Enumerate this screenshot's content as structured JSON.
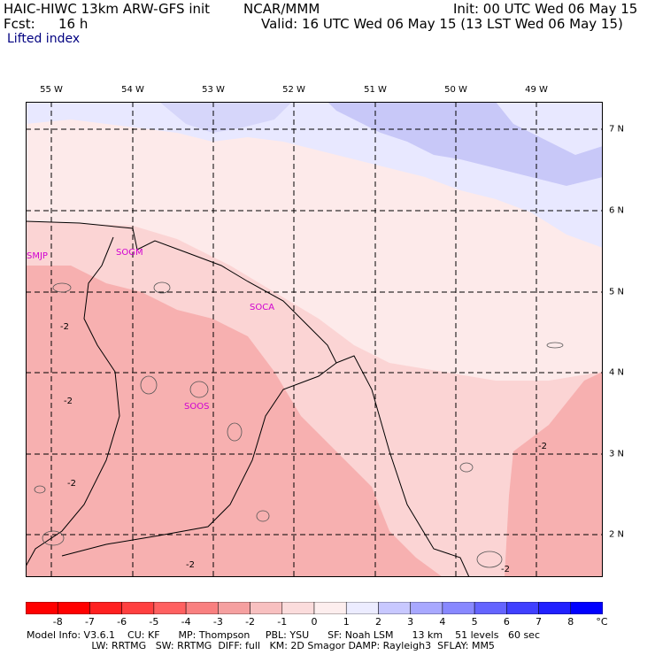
{
  "header": {
    "model": "HAIC-HIWC 13km ARW-GFS init",
    "org": "NCAR/MMM",
    "init": "Init: 00 UTC Wed 06 May 15",
    "fcst_label": "Fcst:",
    "fcst_value": "16 h",
    "valid": "Valid: 16 UTC Wed 06 May 15 (13 LST Wed 06 May 15)",
    "field": "Lifted index"
  },
  "map": {
    "longitudes": [
      "55 W",
      "54 W",
      "53 W",
      "52 W",
      "51 W",
      "50 W",
      "49 W"
    ],
    "latitudes": [
      "7 N",
      "6 N",
      "5 N",
      "4 N",
      "3 N",
      "2 N"
    ],
    "stations": [
      "SMJP",
      "SOGM",
      "SOCA",
      "SOOS"
    ],
    "contour_labels": [
      "-2",
      "-2",
      "-2",
      "-2",
      "-2",
      "-2"
    ],
    "colors": {
      "very_light_red": "#fde6e6",
      "light_red": "#fbd2d2",
      "mid_red": "#f7aaaa",
      "light_blue": "#e6e6ff",
      "blue": "#b4b4f5"
    }
  },
  "colorbar": {
    "unit": "°C",
    "ticks": [
      "-8",
      "-7",
      "-6",
      "-5",
      "-4",
      "-3",
      "-2",
      "-1",
      "0",
      "1",
      "2",
      "3",
      "4",
      "5",
      "6",
      "7",
      "8"
    ],
    "colors": [
      "#ff0000",
      "#ff2020",
      "#ff4040",
      "#ff6060",
      "#f98080",
      "#f5a0a0",
      "#f8c0c0",
      "#fbdcdc",
      "#fdeeee",
      "#ececff",
      "#c8c8ff",
      "#a8a8ff",
      "#8888ff",
      "#6464ff",
      "#4040ff",
      "#2020ff",
      "#0000ff"
    ]
  },
  "model_info": {
    "line1": "Model Info: V3.6.1    CU: KF      MP: Thompson     PBL: YSU      SF: Noah LSM      13 km    51 levels   60 sec",
    "line2": "                     LW: RRTMG   SW: RRTMG  DIFF: full   KM: 2D Smagor DAMP: Rayleigh3  SFLAY: MM5"
  }
}
